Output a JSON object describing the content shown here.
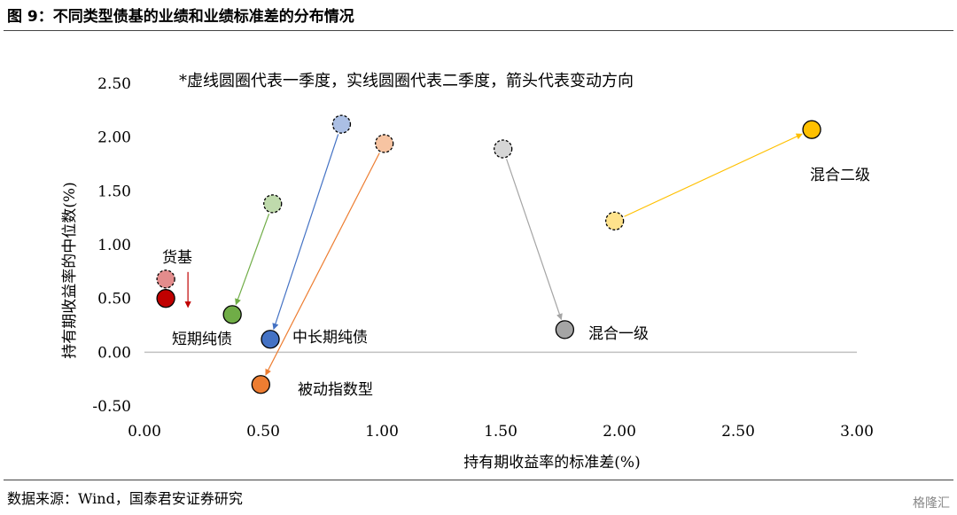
{
  "figure": {
    "title": "图 9：不同类型债基的业绩和业绩标准差的分布情况",
    "source": "数据来源：Wind，国泰君安证券研究",
    "watermark": "格隆汇"
  },
  "chart_data": {
    "type": "scatter",
    "title": "",
    "annotation": "*虚线圆圈代表一季度，实线圆圈代表二季度，箭头代表变动方向",
    "xlabel": "持有期收益率的标准差(%)",
    "ylabel": "持有期收益率的中位数(%)",
    "xlim": [
      0,
      3
    ],
    "ylim": [
      -0.5,
      2.5
    ],
    "x_ticks": [
      "0.00",
      "0.50",
      "1.00",
      "1.50",
      "2.00",
      "2.50",
      "3.00"
    ],
    "y_ticks": [
      "2.50",
      "2.00",
      "1.50",
      "1.00",
      "0.50",
      "0.00",
      "-0.50"
    ],
    "grid": false,
    "series": [
      {
        "name": "货基",
        "color": "#c00000",
        "q1": [
          0.09,
          0.68
        ],
        "q2": [
          0.09,
          0.5
        ],
        "arrow_style": "offset-down"
      },
      {
        "name": "短期纯债",
        "color": "#70ad47",
        "q1": [
          0.54,
          1.38
        ],
        "q2": [
          0.37,
          0.35
        ]
      },
      {
        "name": "中长期纯债",
        "color": "#4472c4",
        "q1": [
          0.83,
          2.12
        ],
        "q2": [
          0.53,
          0.12
        ]
      },
      {
        "name": "被动指数型",
        "color": "#ed7d31",
        "q1": [
          1.01,
          1.94
        ],
        "q2": [
          0.49,
          -0.3
        ]
      },
      {
        "name": "混合一级",
        "color": "#a5a5a5",
        "q1": [
          1.51,
          1.89
        ],
        "q2": [
          1.77,
          0.21
        ]
      },
      {
        "name": "混合二级",
        "color": "#ffc000",
        "q1": [
          1.98,
          1.22
        ],
        "q2": [
          2.81,
          2.07
        ]
      }
    ]
  }
}
